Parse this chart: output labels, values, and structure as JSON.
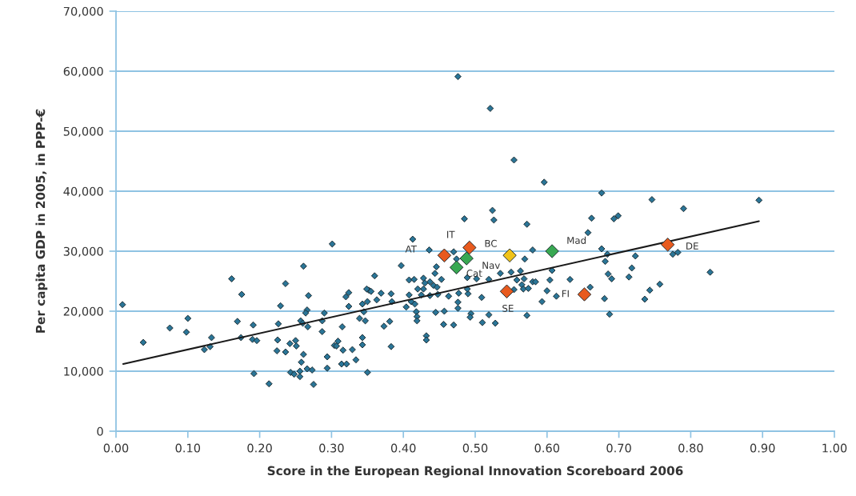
{
  "chart_data": {
    "type": "scatter",
    "xlabel": "Score in the European Regional Innovation Scoreboard 2006",
    "ylabel": "Per capita GDP in 2005, in PPP-€",
    "xlim": [
      0,
      1
    ],
    "ylim": [
      0,
      70000
    ],
    "xticks": [
      {
        "value": 0,
        "label": "0.00"
      },
      {
        "value": 0.1,
        "label": "0.10"
      },
      {
        "value": 0.2,
        "label": "0.20"
      },
      {
        "value": 0.3,
        "label": "0.30"
      },
      {
        "value": 0.4,
        "label": "0.40"
      },
      {
        "value": 0.5,
        "label": "0.50"
      },
      {
        "value": 0.6,
        "label": "0.60"
      },
      {
        "value": 0.7,
        "label": "0.70"
      },
      {
        "value": 0.8,
        "label": "0.80"
      },
      {
        "value": 0.9,
        "label": "0.90"
      },
      {
        "value": 1,
        "label": "1.00"
      }
    ],
    "yticks": [
      0,
      {
        "value": 10000,
        "label": "10,000"
      },
      {
        "value": 20000,
        "label": "20,000"
      },
      {
        "value": 30000,
        "label": "30,000"
      },
      {
        "value": 40000,
        "label": "40,000"
      },
      {
        "value": 50000,
        "label": "50,000"
      },
      {
        "value": 60000,
        "label": "60,000"
      },
      {
        "value": 70000,
        "label": "70,000"
      }
    ],
    "grid": "y",
    "marker": "diamond",
    "series": [
      {
        "color": "#2a7597",
        "x": [
          0.009,
          0.038,
          0.075,
          0.1,
          0.098,
          0.133,
          0.123,
          0.131,
          0.161,
          0.175,
          0.169,
          0.174,
          0.191,
          0.19,
          0.196,
          0.192,
          0.213,
          0.236,
          0.229,
          0.226,
          0.225,
          0.224,
          0.236,
          0.242,
          0.25,
          0.251,
          0.261,
          0.258,
          0.243,
          0.248,
          0.256,
          0.256,
          0.266,
          0.273,
          0.275,
          0.261,
          0.268,
          0.266,
          0.264,
          0.257,
          0.26,
          0.267,
          0.29,
          0.287,
          0.287,
          0.294,
          0.294,
          0.304,
          0.301,
          0.413,
          0.436,
          0.47,
          0.474,
          0.58,
          0.569,
          0.397,
          0.446,
          0.444,
          0.36,
          0.408,
          0.415,
          0.428,
          0.437,
          0.453,
          0.442,
          0.447,
          0.43,
          0.428,
          0.42,
          0.408,
          0.425,
          0.437,
          0.448,
          0.463,
          0.477,
          0.49,
          0.489,
          0.489,
          0.502,
          0.519,
          0.535,
          0.55,
          0.563,
          0.558,
          0.568,
          0.58,
          0.565,
          0.567,
          0.574,
          0.554,
          0.509,
          0.383,
          0.384,
          0.369,
          0.363,
          0.352,
          0.349,
          0.355,
          0.324,
          0.32,
          0.324,
          0.343,
          0.35,
          0.345,
          0.339,
          0.347,
          0.315,
          0.309,
          0.307,
          0.316,
          0.314,
          0.321,
          0.329,
          0.334,
          0.343,
          0.343,
          0.35,
          0.373,
          0.381,
          0.383,
          0.404,
          0.411,
          0.416,
          0.418,
          0.419,
          0.419,
          0.432,
          0.432,
          0.445,
          0.457,
          0.456,
          0.47,
          0.476,
          0.476,
          0.494,
          0.493,
          0.51,
          0.519,
          0.528,
          0.572,
          0.593,
          0.6,
          0.604,
          0.613,
          0.607,
          0.584,
          0.572,
          0.676,
          0.746,
          0.79,
          0.662,
          0.693,
          0.699,
          0.657,
          0.676,
          0.775,
          0.782,
          0.684,
          0.681,
          0.723,
          0.718,
          0.714,
          0.685,
          0.69,
          0.632,
          0.66,
          0.68,
          0.687,
          0.743,
          0.736,
          0.757,
          0.827,
          0.596,
          0.476,
          0.521,
          0.554,
          0.485,
          0.524,
          0.526,
          0.895
        ],
        "values": [
          21100,
          14800,
          17200,
          18800,
          16500,
          15600,
          13600,
          14100,
          25400,
          22800,
          18300,
          15600,
          17700,
          15300,
          15100,
          9600,
          7900,
          24600,
          20900,
          17900,
          15200,
          13400,
          13200,
          14600,
          15100,
          14200,
          12800,
          11500,
          9800,
          9500,
          10000,
          9100,
          10400,
          10200,
          7800,
          27500,
          22600,
          20200,
          19700,
          18400,
          18000,
          17400,
          19700,
          18400,
          16600,
          12400,
          10500,
          14300,
          31200,
          32000,
          30200,
          29900,
          28700,
          30200,
          28700,
          27600,
          27400,
          26300,
          25900,
          25200,
          25300,
          25500,
          24900,
          25300,
          24300,
          24000,
          24700,
          23700,
          23700,
          22700,
          22700,
          22600,
          22800,
          22500,
          23000,
          22900,
          23700,
          25600,
          25400,
          25300,
          26300,
          26500,
          26700,
          25200,
          25400,
          24900,
          24400,
          23700,
          23800,
          23600,
          22300,
          22900,
          21600,
          23000,
          21900,
          23500,
          23700,
          23300,
          23100,
          22400,
          20800,
          21200,
          21600,
          19900,
          18800,
          18400,
          17400,
          15000,
          14200,
          13500,
          11200,
          11200,
          13600,
          11900,
          15600,
          14400,
          9800,
          17500,
          18300,
          14100,
          20700,
          21600,
          21200,
          19900,
          19100,
          18400,
          15900,
          15200,
          19800,
          20000,
          17800,
          17700,
          21500,
          20500,
          19600,
          19000,
          18100,
          19400,
          18000,
          19300,
          21600,
          23400,
          25200,
          22500,
          26800,
          24900,
          34500,
          39700,
          38600,
          37100,
          35500,
          35400,
          35900,
          33100,
          30400,
          29500,
          29800,
          29500,
          28300,
          29200,
          27200,
          25700,
          26200,
          25400,
          25300,
          24000,
          22100,
          19500,
          23500,
          22000,
          24500,
          26500,
          41500,
          59100,
          53800,
          45200,
          35400,
          36800,
          35200,
          38500
        ]
      },
      {
        "type": "line",
        "marker": "none",
        "color": "#1a1a1a",
        "x": [
          0.01,
          0.895
        ],
        "values": [
          11200,
          35000
        ]
      },
      {
        "color": "#e85a1e",
        "x": [
          0.457,
          0.492,
          0.544,
          0.652,
          0.768
        ],
        "values": [
          29300,
          30600,
          23300,
          22800,
          31100
        ]
      },
      {
        "color": "#38a852",
        "x": [
          0.488,
          0.474,
          0.607
        ],
        "values": [
          28800,
          27300,
          30000
        ]
      },
      {
        "color": "#f0c31a",
        "x": [
          0.548
        ],
        "values": [
          29300
        ]
      }
    ],
    "annotations": [
      {
        "text": "AT",
        "x": 0.457,
        "y": 29300
      },
      {
        "text": "IT",
        "x": 0.492,
        "y": 30600
      },
      {
        "text": "Nav",
        "x": 0.488,
        "y": 28800
      },
      {
        "text": "Cat",
        "x": 0.474,
        "y": 27300
      },
      {
        "text": "BC",
        "x": 0.548,
        "y": 29300
      },
      {
        "text": "Mad",
        "x": 0.607,
        "y": 30000
      },
      {
        "text": "SE",
        "x": 0.544,
        "y": 23300
      },
      {
        "text": "FI",
        "x": 0.652,
        "y": 22800
      },
      {
        "text": "DE",
        "x": 0.768,
        "y": 31100
      }
    ]
  }
}
